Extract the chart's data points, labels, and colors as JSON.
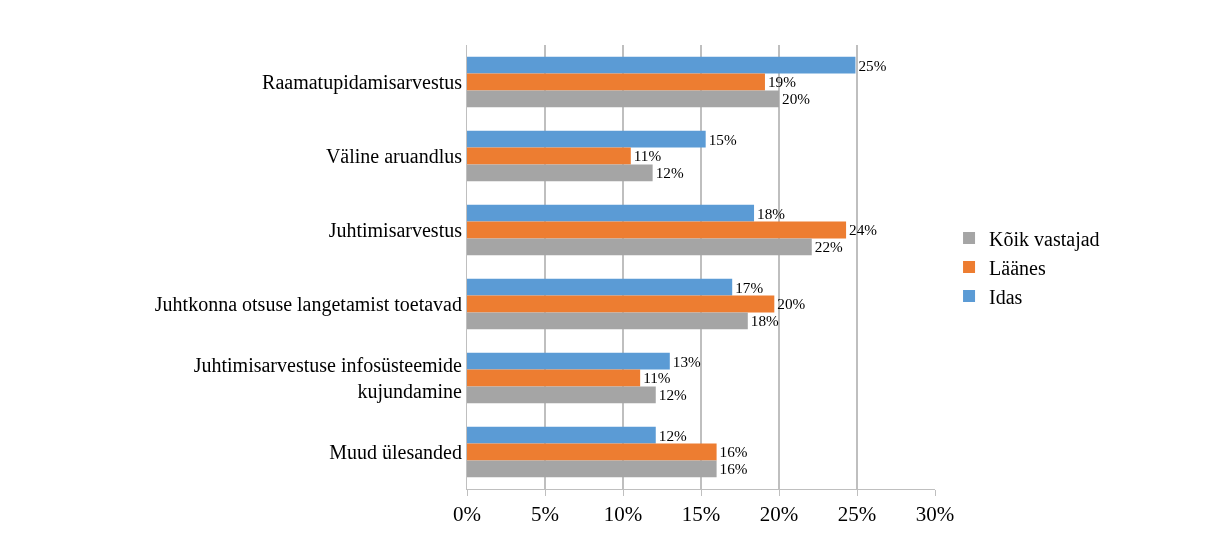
{
  "chart_data": {
    "type": "bar",
    "orientation": "horizontal",
    "categories": [
      "Raamatupidamisarvestus",
      "Väline aruandlus",
      "Juhtimisarvestus",
      "Juhtkonna otsuse langetamist toetavad",
      "Juhtimisarvestuse infosüsteemide\nkujundamine",
      "Muud ülesanded"
    ],
    "series": [
      {
        "name": "Idas",
        "color": "#5b9bd5",
        "values": [
          24.9,
          15.3,
          18.4,
          17.0,
          13.0,
          12.1
        ],
        "value_labels": [
          "25%",
          "15%",
          "18%",
          "17%",
          "13%",
          "12%"
        ]
      },
      {
        "name": "Läänes",
        "color": "#ed7d31",
        "values": [
          19.1,
          10.5,
          24.3,
          19.7,
          11.1,
          16.0
        ],
        "value_labels": [
          "19%",
          "11%",
          "24%",
          "20%",
          "11%",
          "16%"
        ]
      },
      {
        "name": "Kõik vastajad",
        "color": "#a5a5a5",
        "values": [
          20.0,
          11.9,
          22.1,
          18.0,
          12.1,
          16.0
        ],
        "value_labels": [
          "20%",
          "12%",
          "22%",
          "18%",
          "12%",
          "16%"
        ]
      }
    ],
    "xlim": [
      0,
      30
    ],
    "xticks": [
      {
        "value": 0,
        "label": "0%"
      },
      {
        "value": 5,
        "label": "5%"
      },
      {
        "value": 10,
        "label": "10%"
      },
      {
        "value": 15,
        "label": "15%"
      },
      {
        "value": 20,
        "label": "20%"
      },
      {
        "value": 25,
        "label": "25%"
      },
      {
        "value": 30,
        "label": "30%"
      }
    ],
    "grid": "x",
    "legend": "right"
  }
}
